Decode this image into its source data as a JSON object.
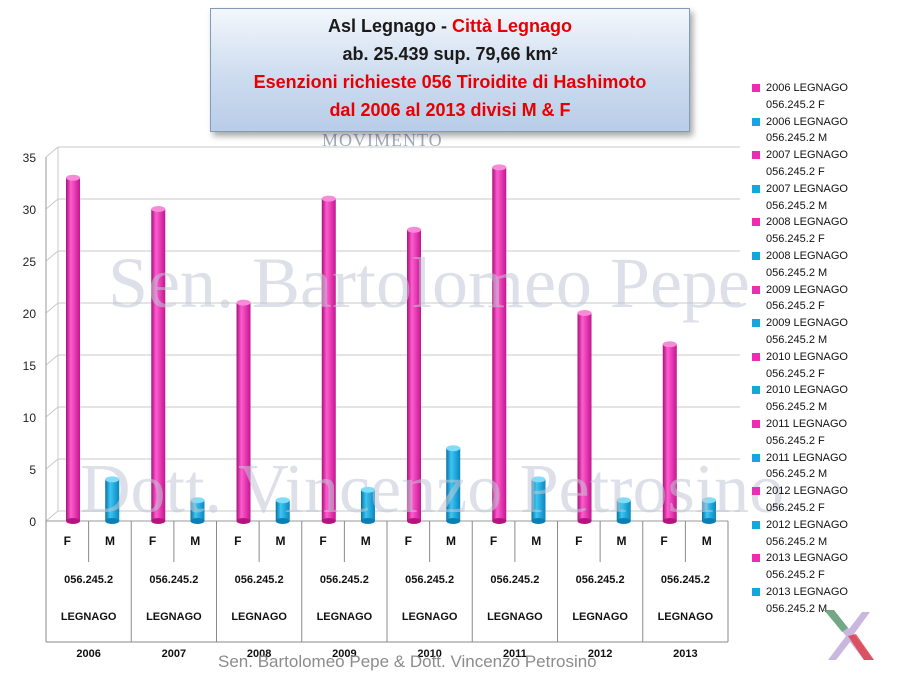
{
  "title": {
    "line1_a": "Asl Legnago - ",
    "line1_b": "Città Legnago",
    "line2": "ab. 25.439 sup. 79,66 km²",
    "line3": "Esenzioni richieste 056 Tiroidite di Hashimoto",
    "line4": "dal 2006 al 2013 divisi M & F"
  },
  "watermarks": {
    "logo": "MOVIMENTO",
    "large_1": "Sen. Bartolomeo Pepe",
    "large_2": "Dott. Vincenzo Petrosino"
  },
  "footer": "Sen. Bartolomeo Pepe &  Dott. Vincenzo Petrosino",
  "colors": {
    "female": "#ee2bb4",
    "male": "#13a6df",
    "grid": "#c8c8c8"
  },
  "chart_data": {
    "type": "bar",
    "ylim": [
      0,
      35
    ],
    "yticks": [
      0,
      5,
      10,
      15,
      20,
      25,
      30,
      35
    ],
    "grid": true,
    "legend_position": "right",
    "years": [
      "2006",
      "2007",
      "2008",
      "2009",
      "2010",
      "2011",
      "2012",
      "2013"
    ],
    "code_label": "056.245.2",
    "place_label": "LEGNAGO",
    "sex_labels": [
      "F",
      "M"
    ],
    "series": [
      {
        "name": "F",
        "values": [
          33,
          30,
          21,
          31,
          28,
          34,
          20,
          17
        ]
      },
      {
        "name": "M",
        "values": [
          4,
          2,
          2,
          3,
          7,
          4,
          2,
          2
        ]
      }
    ],
    "legend": [
      {
        "line1": "2006 LEGNAGO",
        "line2": "056.245.2 F",
        "sex": "F"
      },
      {
        "line1": "2006 LEGNAGO",
        "line2": "056.245.2 M",
        "sex": "M"
      },
      {
        "line1": "2007 LEGNAGO",
        "line2": "056.245.2 F",
        "sex": "F"
      },
      {
        "line1": "2007 LEGNAGO",
        "line2": "056.245.2 M",
        "sex": "M"
      },
      {
        "line1": "2008 LEGNAGO",
        "line2": "056.245.2 F",
        "sex": "F"
      },
      {
        "line1": "2008 LEGNAGO",
        "line2": "056.245.2 M",
        "sex": "M"
      },
      {
        "line1": "2009 LEGNAGO",
        "line2": "056.245.2 F",
        "sex": "F"
      },
      {
        "line1": "2009 LEGNAGO",
        "line2": "056.245.2 M",
        "sex": "M"
      },
      {
        "line1": "2010 LEGNAGO",
        "line2": "056.245.2 F",
        "sex": "F"
      },
      {
        "line1": "2010 LEGNAGO",
        "line2": "056.245.2 M",
        "sex": "M"
      },
      {
        "line1": "2011 LEGNAGO",
        "line2": "056.245.2 F",
        "sex": "F"
      },
      {
        "line1": "2011 LEGNAGO",
        "line2": "056.245.2 M",
        "sex": "M"
      },
      {
        "line1": "2012 LEGNAGO",
        "line2": "056.245.2 F",
        "sex": "F"
      },
      {
        "line1": "2012 LEGNAGO",
        "line2": "056.245.2 M",
        "sex": "M"
      },
      {
        "line1": "2013 LEGNAGO",
        "line2": "056.245.2 F",
        "sex": "F"
      },
      {
        "line1": "2013 LEGNAGO",
        "line2": "056.245.2 M",
        "sex": "M"
      }
    ]
  }
}
